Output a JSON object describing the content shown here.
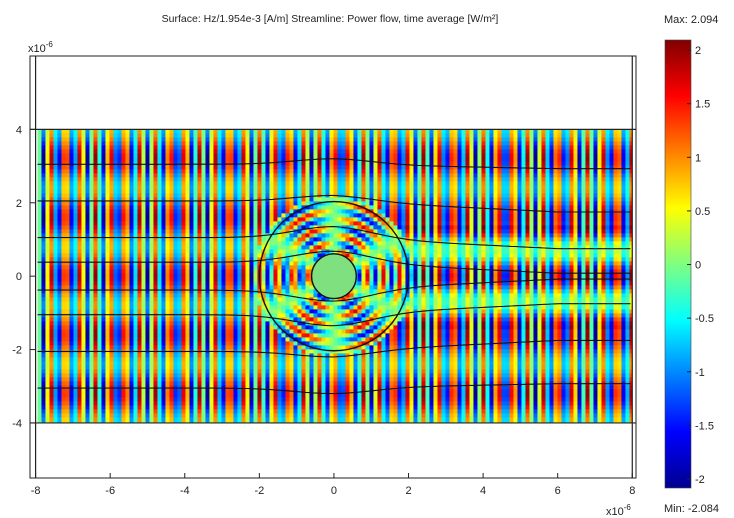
{
  "chart_data": {
    "type": "heatmap",
    "title": "Surface: Hz/1.954e-3 [A/m]   Streamline: Power flow, time average [W/m²]",
    "x_exponent": "x10",
    "x_exponent_power": "-6",
    "y_exponent": "x10",
    "y_exponent_power": "-6",
    "xlim": [
      -8.15,
      8.1
    ],
    "ylim": [
      -5.5,
      6.0
    ],
    "x_ticks": [
      "-8",
      "-6",
      "-4",
      "-2",
      "0",
      "2",
      "4",
      "6",
      "8"
    ],
    "x_tick_values": [
      -8,
      -6,
      -4,
      -2,
      0,
      2,
      4,
      6,
      8
    ],
    "y_ticks": [
      "4",
      "2",
      "0",
      "-2",
      "-4"
    ],
    "y_tick_values": [
      4,
      2,
      0,
      -2,
      -4
    ],
    "domain": {
      "x": [
        -8,
        8
      ],
      "y": [
        -4,
        4
      ]
    },
    "field_region": {
      "x": [
        -7.95,
        8.0
      ],
      "y": [
        -4,
        4
      ]
    },
    "geometry": {
      "outer_circle": {
        "cx": 0,
        "cy": 0,
        "r": 2.0
      },
      "inner_circle": {
        "cx": 0,
        "cy": 0,
        "r": 0.6,
        "fill": "#7fe07f"
      }
    },
    "field": {
      "wavelength": 0.4,
      "units": "A/m (normalized)"
    },
    "streamlines_y": [
      3.05,
      2.05,
      1.05,
      0.38,
      -0.38,
      -1.05,
      -2.05,
      -3.05
    ],
    "colorbar": {
      "max_label": "Max: 2.094",
      "min_label": "Min: -2.084",
      "max": 2.094,
      "min": -2.084,
      "ticks": [
        "2",
        "1.5",
        "1",
        "0.5",
        "0",
        "-0.5",
        "-1",
        "-1.5",
        "-2"
      ],
      "tick_values": [
        2,
        1.5,
        1,
        0.5,
        0,
        -0.5,
        -1,
        -1.5,
        -2
      ],
      "colormap": "jet"
    }
  }
}
